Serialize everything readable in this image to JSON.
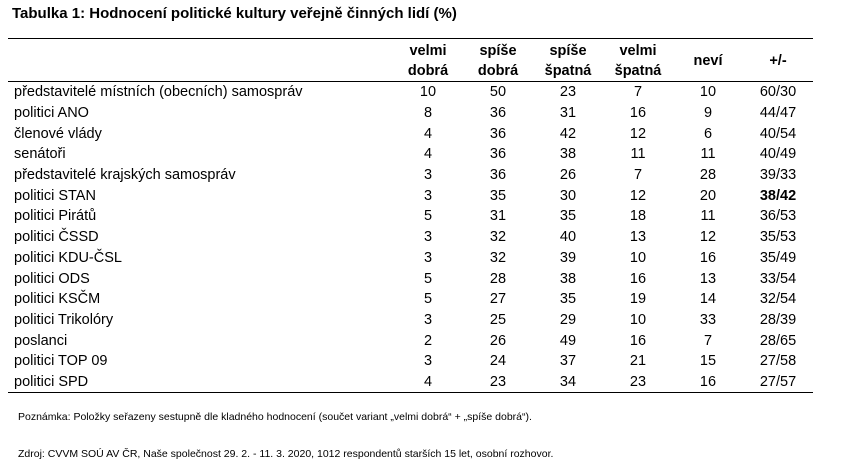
{
  "title": "Tabulka 1: Hodnocení politické kultury veřejně činných lidí (%)",
  "headers": [
    {
      "line1": "velmi",
      "line2": "dobrá"
    },
    {
      "line1": "spíše",
      "line2": "dobrá"
    },
    {
      "line1": "spíše",
      "line2": "špatná"
    },
    {
      "line1": "velmi",
      "line2": "špatná"
    },
    {
      "line1": "neví",
      "line2": ""
    },
    {
      "line1": "+/-",
      "line2": ""
    }
  ],
  "rows": [
    {
      "label": "představitelé místních (obecních) samospráv",
      "v": [
        "10",
        "50",
        "23",
        "7",
        "10",
        "60/30"
      ]
    },
    {
      "label": "politici ANO",
      "v": [
        "8",
        "36",
        "31",
        "16",
        "9",
        "44/47"
      ]
    },
    {
      "label": "členové vlády",
      "v": [
        "4",
        "36",
        "42",
        "12",
        "6",
        "40/54"
      ]
    },
    {
      "label": "senátoři",
      "v": [
        "4",
        "36",
        "38",
        "11",
        "11",
        "40/49"
      ]
    },
    {
      "label": "představitelé krajských samospráv",
      "v": [
        "3",
        "36",
        "26",
        "7",
        "28",
        "39/33"
      ]
    },
    {
      "label": "politici STAN",
      "v": [
        "3",
        "35",
        "30",
        "12",
        "20",
        "38/42"
      ],
      "bold_last": true
    },
    {
      "label": "politici Pirátů",
      "v": [
        "5",
        "31",
        "35",
        "18",
        "11",
        "36/53"
      ]
    },
    {
      "label": "politici ČSSD",
      "v": [
        "3",
        "32",
        "40",
        "13",
        "12",
        "35/53"
      ]
    },
    {
      "label": "politici KDU-ČSL",
      "v": [
        "3",
        "32",
        "39",
        "10",
        "16",
        "35/49"
      ]
    },
    {
      "label": "politici ODS",
      "v": [
        "5",
        "28",
        "38",
        "16",
        "13",
        "33/54"
      ]
    },
    {
      "label": "politici KSČM",
      "v": [
        "5",
        "27",
        "35",
        "19",
        "14",
        "32/54"
      ]
    },
    {
      "label": "politici Trikolóry",
      "v": [
        "3",
        "25",
        "29",
        "10",
        "33",
        "28/39"
      ]
    },
    {
      "label": "poslanci",
      "v": [
        "2",
        "26",
        "49",
        "16",
        "7",
        "28/65"
      ]
    },
    {
      "label": "politici TOP 09",
      "v": [
        "3",
        "24",
        "37",
        "21",
        "15",
        "27/58"
      ]
    },
    {
      "label": "politici SPD",
      "v": [
        "4",
        "23",
        "34",
        "23",
        "16",
        "27/57"
      ]
    }
  ],
  "note": "Poznámka: Položky seřazeny sestupně dle kladného hodnocení (součet variant „velmi dobrá“ + „spíše dobrá“).",
  "source": "Zdroj: CVVM SOÚ AV ČR, Naše společnost 29. 2. - 11. 3. 2020, 1012 respondentů starších 15 let, osobní rozhovor."
}
